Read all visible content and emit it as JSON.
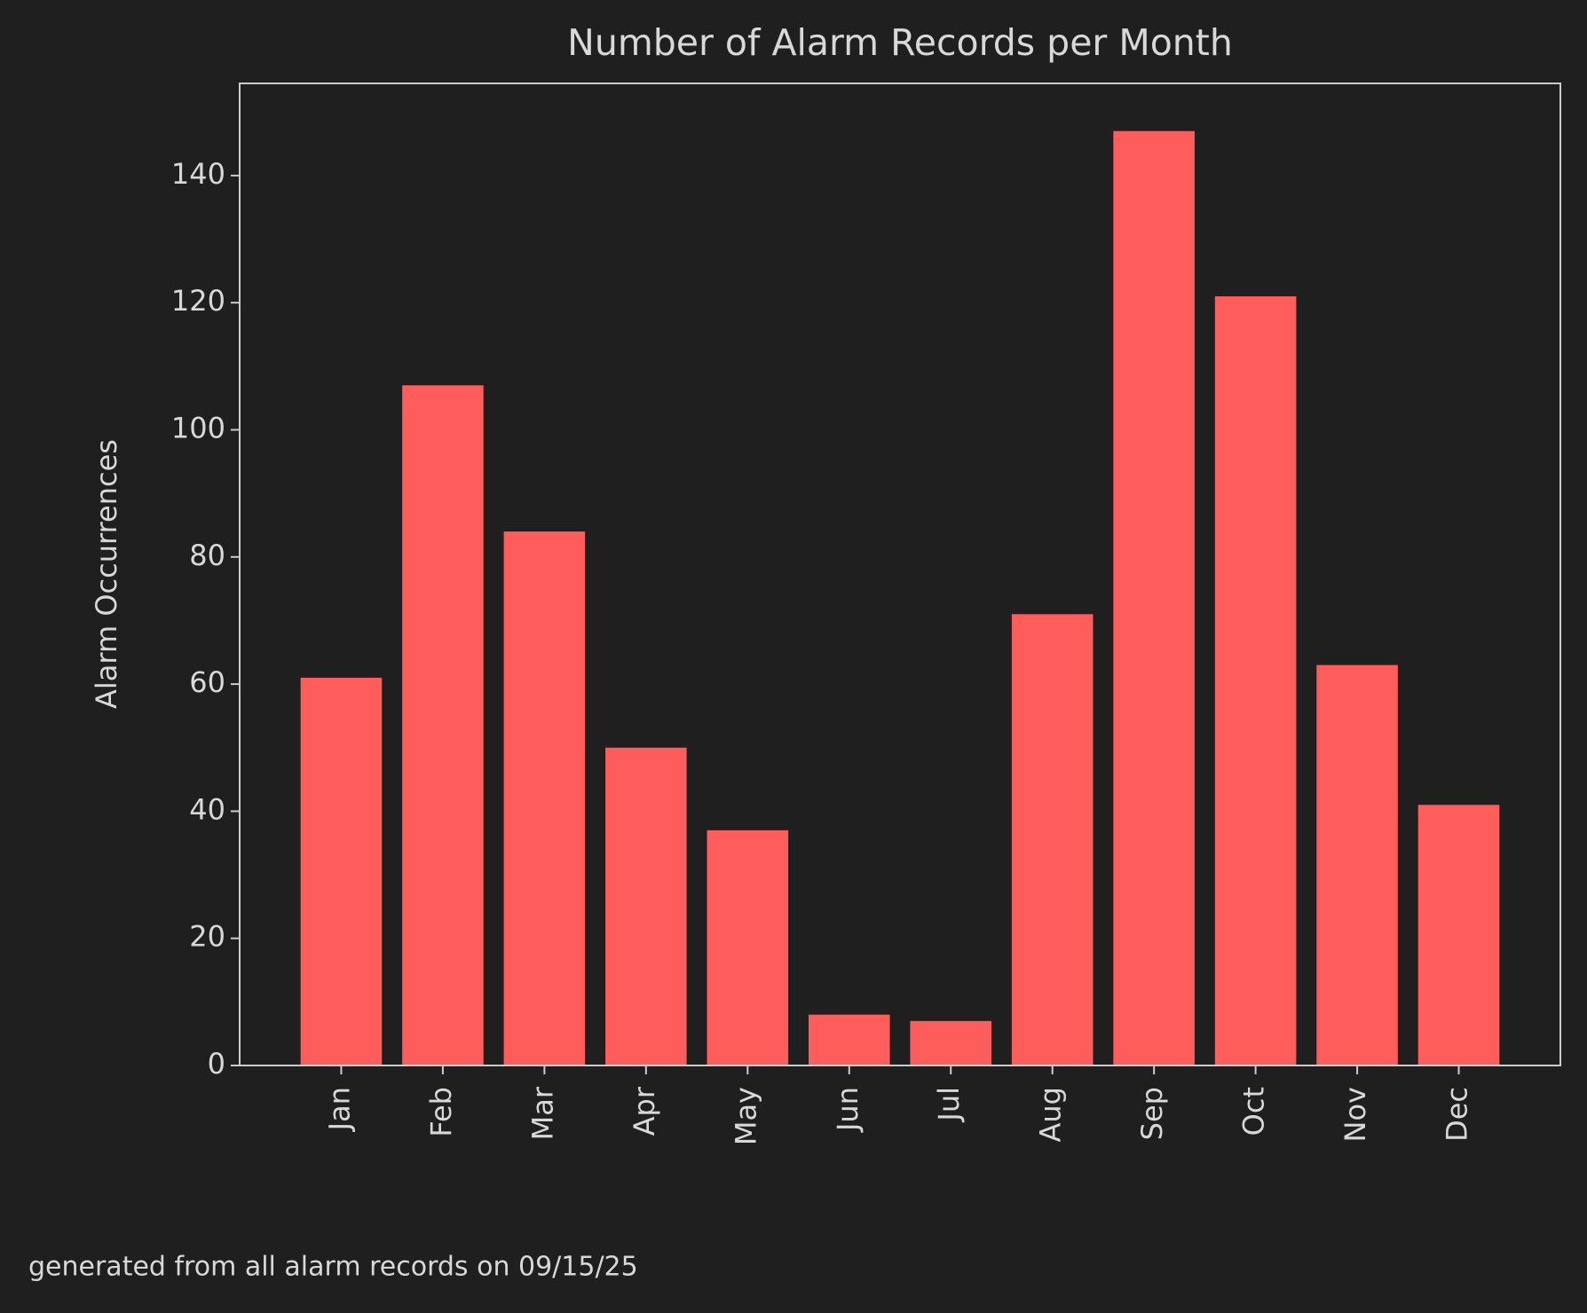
{
  "chart_data": {
    "type": "bar",
    "title": "Number of Alarm Records per Month",
    "y_label": "Alarm Occurrences",
    "categories": [
      "Jan",
      "Feb",
      "Mar",
      "Apr",
      "May",
      "Jun",
      "Jul",
      "Aug",
      "Sep",
      "Oct",
      "Nov",
      "Dec"
    ],
    "values": [
      61,
      107,
      84,
      50,
      37,
      8,
      7,
      71,
      147,
      121,
      63,
      41
    ],
    "color": "#ff5c5c",
    "ylim": [
      0,
      154.5
    ],
    "yticks": [
      0,
      20,
      40,
      60,
      80,
      100,
      120,
      140
    ],
    "grid": false
  },
  "footer": "generated from all alarm records on 09/15/25"
}
